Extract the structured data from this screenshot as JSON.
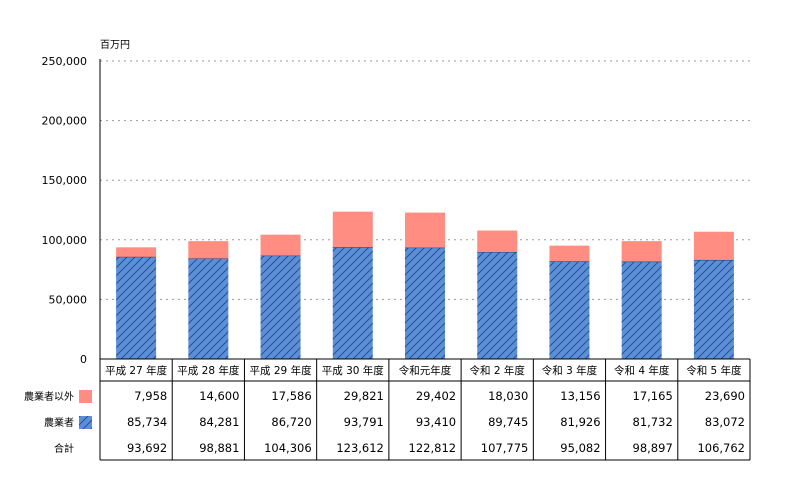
{
  "chart_data": {
    "type": "bar",
    "stacked": true,
    "unit": "百万円",
    "ylim": [
      0,
      250000
    ],
    "yticks": [
      0,
      50000,
      100000,
      150000,
      200000,
      250000
    ],
    "ytick_labels": [
      "0",
      "50,000",
      "100,000",
      "150,000",
      "200,000",
      "250,000"
    ],
    "grid": true,
    "categories": [
      "平成 27 年度",
      "平成 28 年度",
      "平成 29 年度",
      "平成 30 年度",
      "令和元年度",
      "令和 2 年度",
      "令和 3 年度",
      "令和 4 年度",
      "令和 5 年度"
    ],
    "series": [
      {
        "name": "農業者",
        "color": "#5b8fd9",
        "pattern": "diagonal-hatch",
        "values": [
          85734,
          84281,
          86720,
          93791,
          93410,
          89745,
          81926,
          81732,
          83072
        ],
        "labels": [
          "85,734",
          "84,281",
          "86,720",
          "93,791",
          "93,410",
          "89,745",
          "81,926",
          "81,732",
          "83,072"
        ]
      },
      {
        "name": "農業者以外",
        "color": "#ff8d82",
        "pattern": "solid",
        "values": [
          7958,
          14600,
          17586,
          29821,
          29402,
          18030,
          13156,
          17165,
          23690
        ],
        "labels": [
          "7,958",
          "14,600",
          "17,586",
          "29,821",
          "29,402",
          "18,030",
          "13,156",
          "17,165",
          "23,690"
        ]
      }
    ],
    "table": {
      "rows": [
        {
          "label": "農業者以外",
          "series_index": 1
        },
        {
          "label": "農業者",
          "series_index": 0
        },
        {
          "label": "合計",
          "labels": [
            "93,692",
            "98,881",
            "104,306",
            "123,612",
            "122,812",
            "107,775",
            "95,082",
            "98,897",
            "106,762"
          ]
        }
      ]
    }
  }
}
